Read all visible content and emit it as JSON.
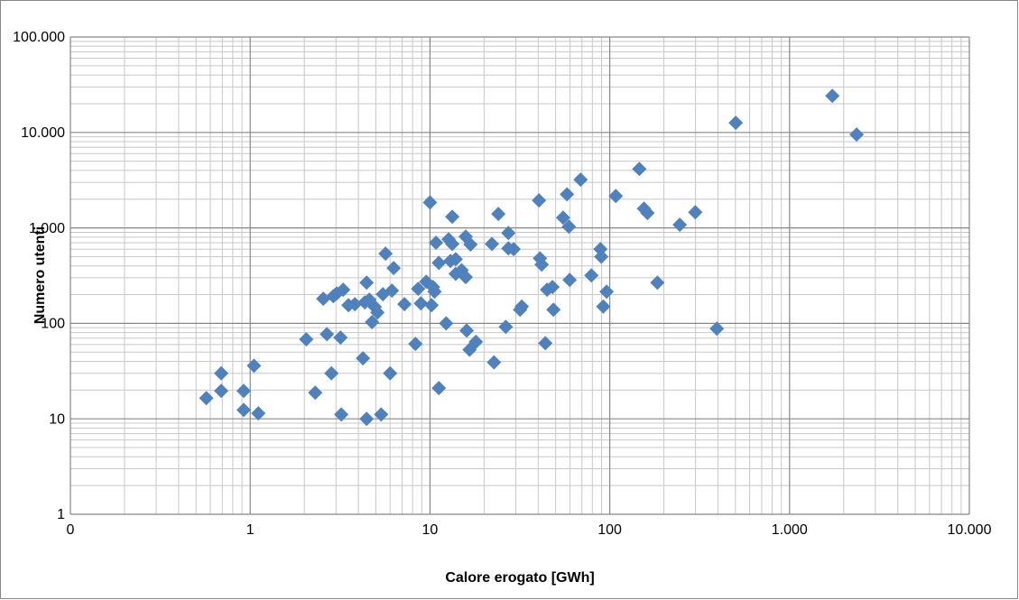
{
  "chart_data": {
    "type": "scatter",
    "x_label": "Calore erogato [GWh]",
    "y_label": "Numero utenti",
    "color": "#4f81bd",
    "log_x": true,
    "log_y": true,
    "grid": true,
    "minor_grid": true,
    "xlim": [
      0.1,
      10000
    ],
    "ylim": [
      1,
      100000
    ],
    "xticks": [
      {
        "value": 0.1,
        "label": "0"
      },
      1,
      10,
      100,
      {
        "value": 1000,
        "label": "1.000"
      },
      {
        "value": 10000,
        "label": "10.000"
      }
    ],
    "yticks": [
      1,
      10,
      100,
      {
        "value": 1000,
        "label": "1.000"
      },
      {
        "value": 10000,
        "label": "10.000"
      },
      {
        "value": 100000,
        "label": "100.000"
      }
    ],
    "x": [
      0.57,
      0.69,
      0.69,
      0.92,
      0.92,
      1.05,
      1.11,
      2.05,
      2.3,
      2.55,
      2.67,
      2.83,
      2.9,
      3.03,
      3.18,
      3.21,
      3.29,
      3.52,
      3.82,
      4.34,
      4.24,
      4.44,
      4.44,
      4.6,
      4.76,
      4.93,
      5.1,
      5.35,
      5.47,
      5.66,
      6.0,
      6.14,
      6.28,
      7.21,
      8.3,
      8.59,
      8.9,
      9.53,
      10,
      10.2,
      10.4,
      10.8,
      10.6,
      11.2,
      11.2,
      12.3,
      12.7,
      13,
      13.3,
      13.3,
      13.9,
      13.9,
      15,
      15.8,
      15.8,
      16,
      16.6,
      16.8,
      18,
      22.1,
      22.7,
      24,
      26.4,
      27.3,
      27.3,
      29.2,
      31.7,
      32.4,
      40.4,
      40.9,
      41.8,
      43.8,
      44.8,
      48,
      48.6,
      55,
      57.8,
      59.2,
      59.8,
      68.8,
      88.7,
      89.7,
      79,
      92,
      96,
      108,
      146,
      155,
      162,
      184,
      245,
      299,
      394,
      502,
      1730,
      2360
    ],
    "y": [
      16.5,
      30,
      19.6,
      19.6,
      12.4,
      36,
      11.4,
      68,
      18.8,
      181,
      77,
      30,
      193,
      206,
      71,
      11.1,
      225,
      155,
      159,
      166,
      43,
      267,
      10,
      177,
      103,
      149,
      130,
      11.1,
      202,
      537,
      30,
      220,
      379,
      159,
      61,
      230,
      162,
      273,
      1850,
      155,
      240,
      700,
      215,
      430,
      21,
      100,
      760,
      450,
      680,
      1310,
      330,
      470,
      360,
      305,
      810,
      84,
      53,
      670,
      64,
      680,
      39,
      1400,
      92,
      885,
      610,
      600,
      139,
      150,
      1940,
      480,
      413,
      62,
      225,
      240,
      139,
      1280,
      2250,
      1030,
      285,
      3200,
      600,
      500,
      318,
      150,
      215,
      2160,
      4150,
      1590,
      1430,
      267,
      1080,
      1460,
      88,
      12600,
      24200,
      9500
    ]
  }
}
